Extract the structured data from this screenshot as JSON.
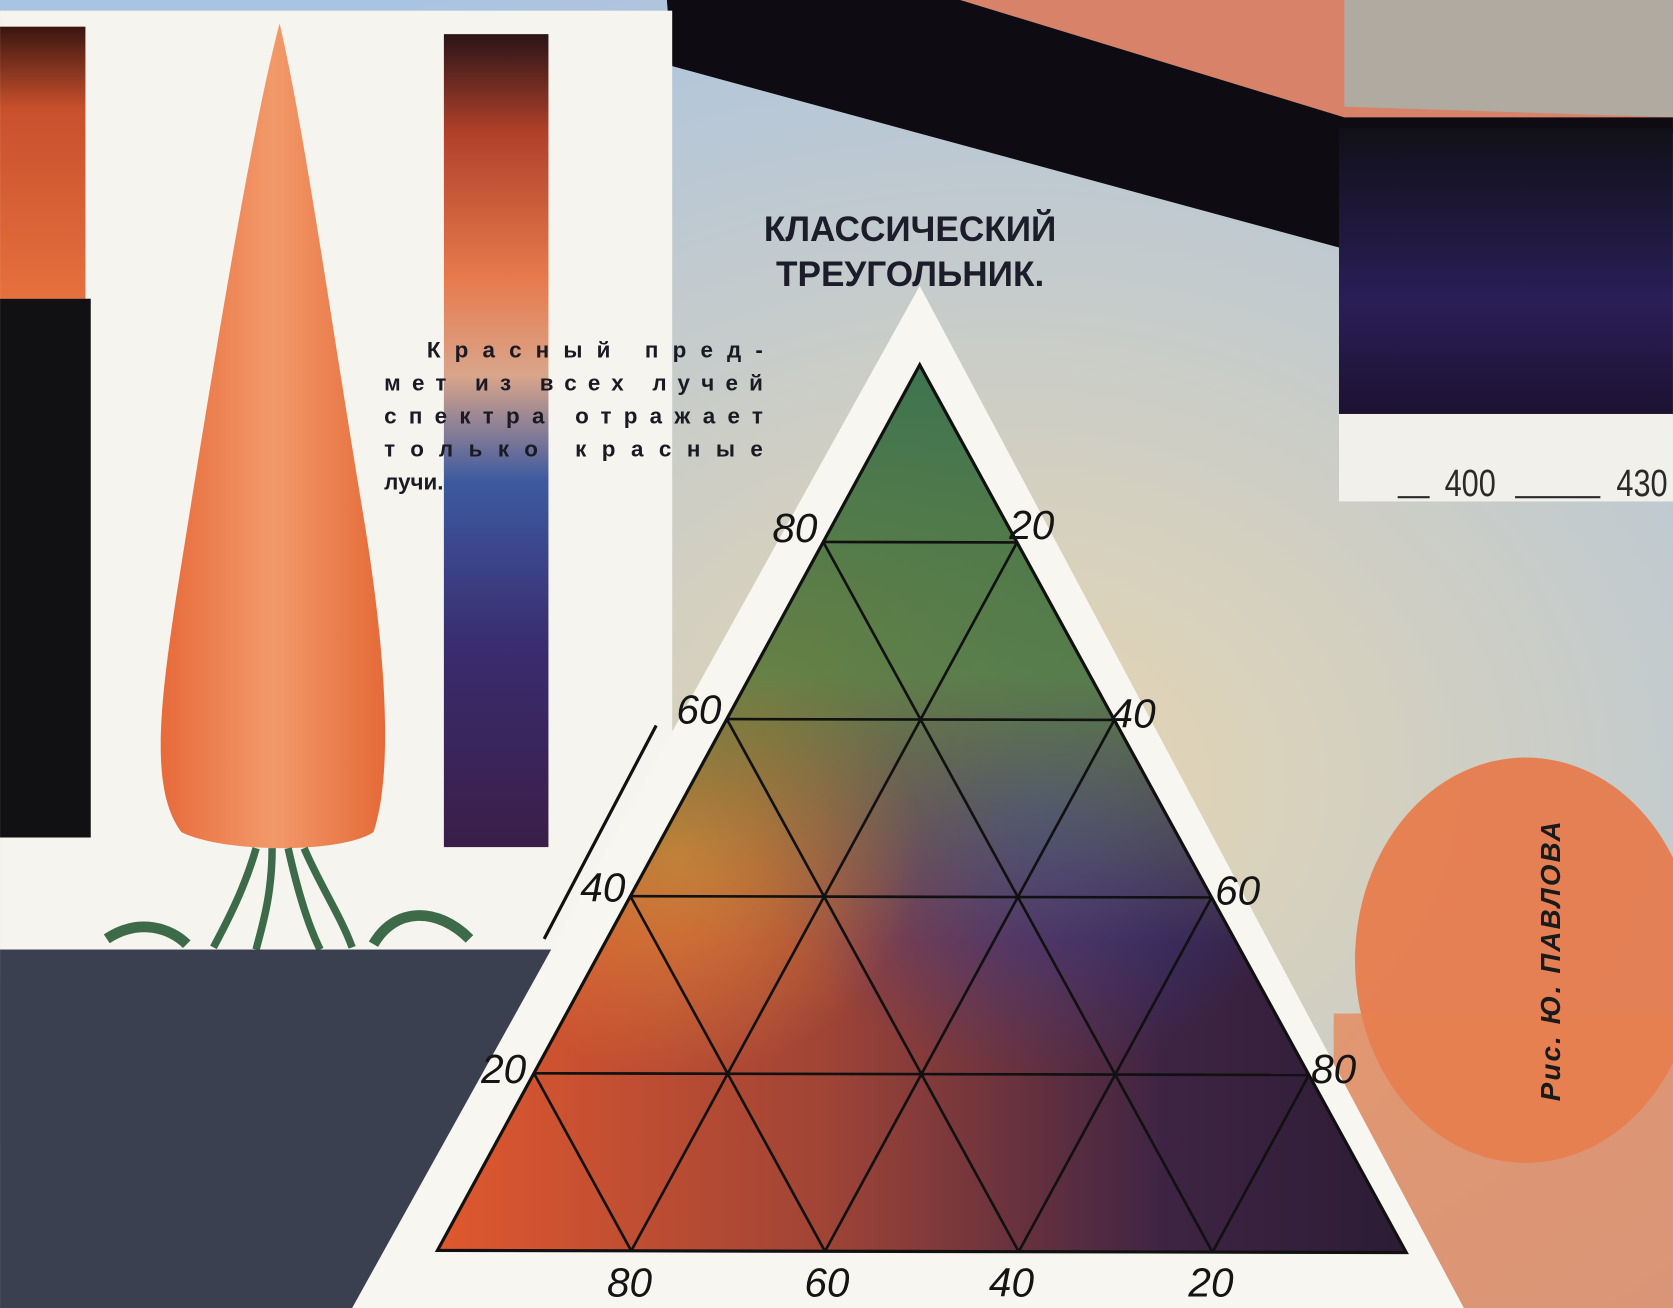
{
  "title": {
    "lines": [
      "КЛАССИЧЕСКИЙ",
      "ТРЕУГОЛЬНИК."
    ]
  },
  "caption": {
    "lines": [
      "Красный пред-",
      "мет из всех лучей",
      "спектра отражает",
      "только красные",
      "лучи."
    ]
  },
  "triangle": {
    "left_labels": [
      80,
      60,
      40,
      20
    ],
    "right_labels": [
      20,
      40,
      60,
      80
    ],
    "bottom_labels": [
      80,
      60,
      40,
      20
    ]
  },
  "spectrum_scale": {
    "labels": [
      400,
      430
    ]
  },
  "credit": "Рис. Ю. ПАВЛОВА"
}
